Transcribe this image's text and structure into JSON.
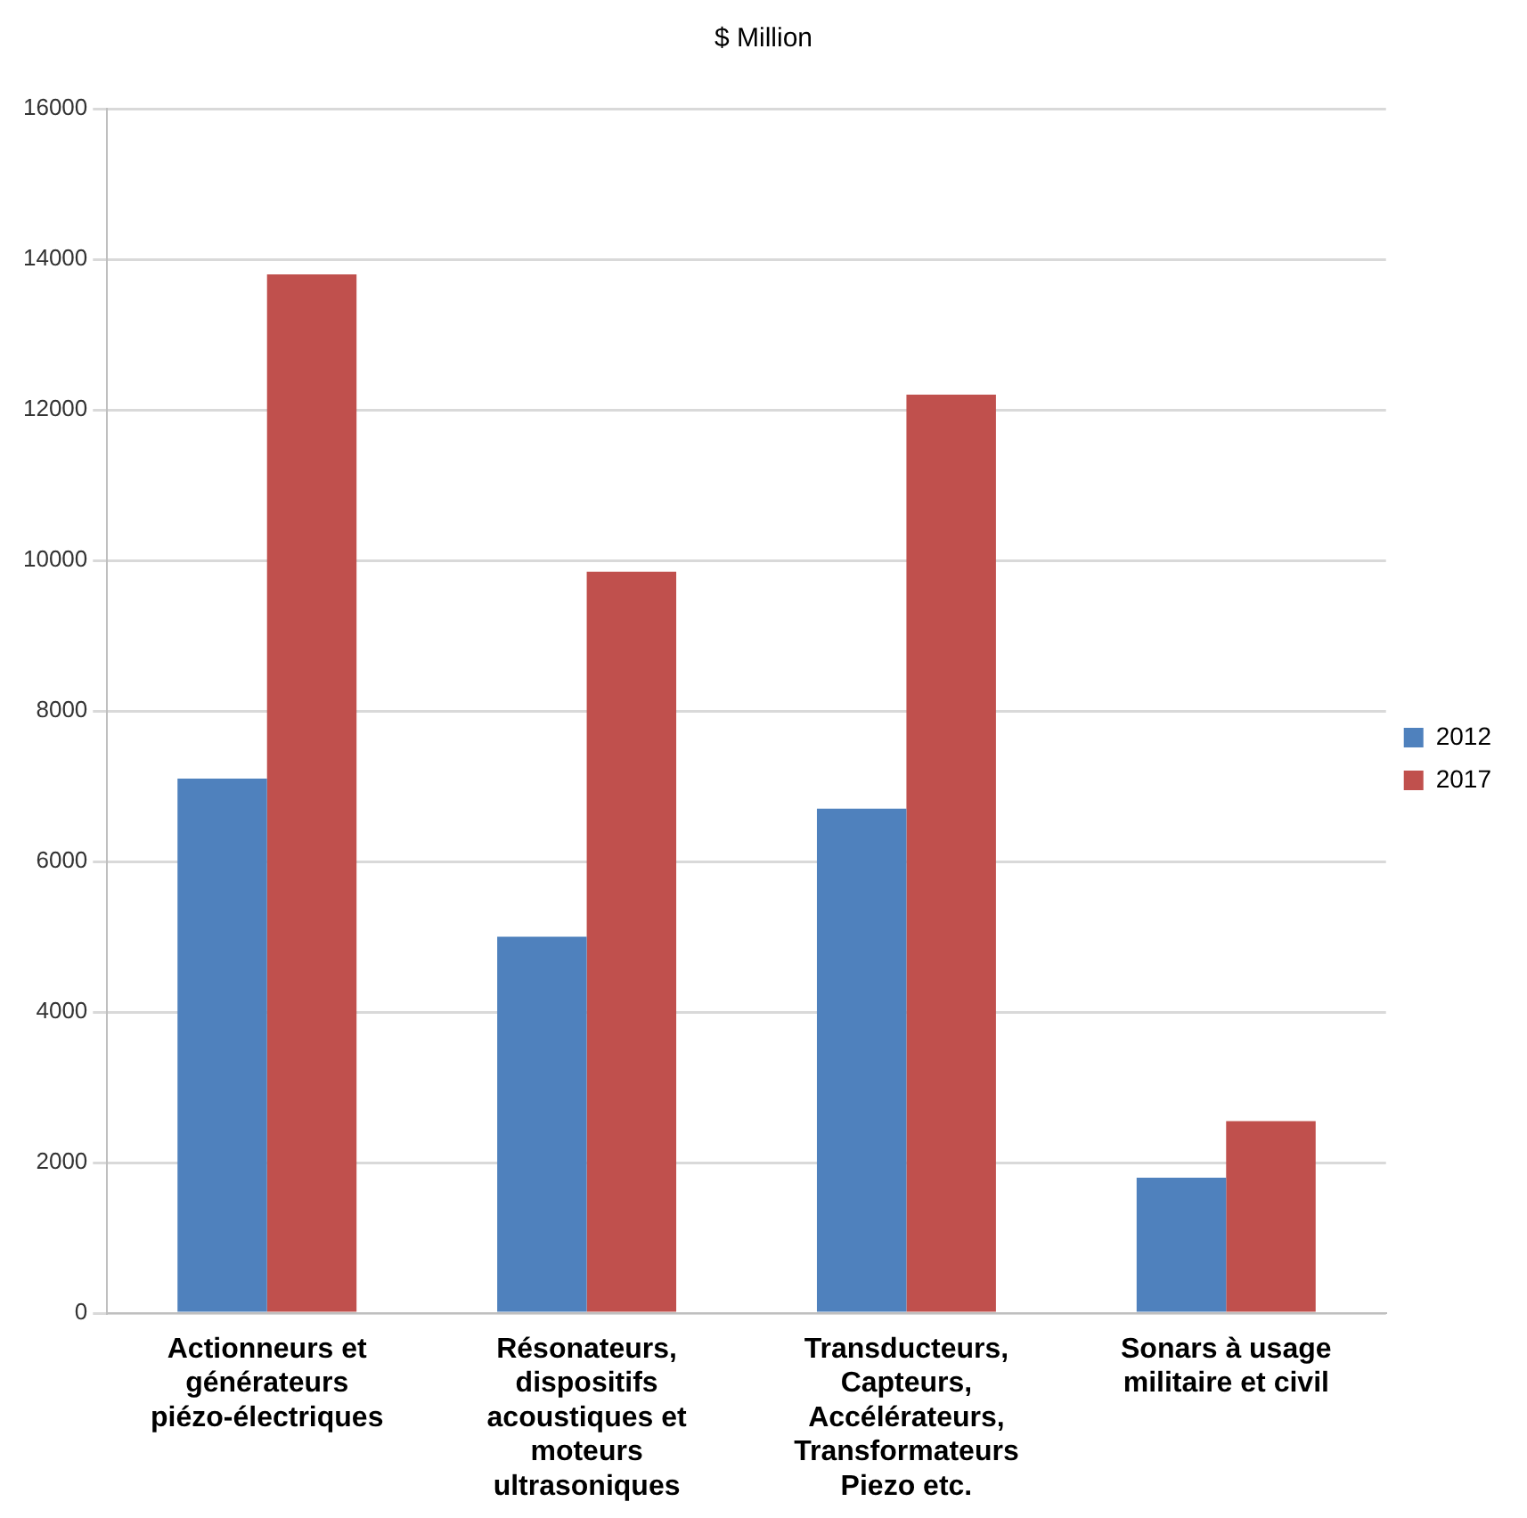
{
  "chart_data": {
    "type": "bar",
    "title": "$ Million",
    "categories": [
      "Actionneurs et générateurs piézo-électriques",
      "Résonateurs, dispositifs acoustiques et moteurs ultrasoniques",
      "Transducteurs, Capteurs, Accélérateurs, Transformateurs Piezo etc.",
      "Sonars à usage militaire et civil"
    ],
    "series": [
      {
        "name": "2012",
        "color": "#4f81bd",
        "values": [
          7100,
          5000,
          6700,
          1800
        ]
      },
      {
        "name": "2017",
        "color": "#c0504d",
        "values": [
          13800,
          9850,
          12200,
          2550
        ]
      }
    ],
    "ylim": [
      0,
      16000
    ],
    "yticks": [
      0,
      2000,
      4000,
      6000,
      8000,
      10000,
      12000,
      14000,
      16000
    ],
    "grid": "y",
    "legend": "right"
  }
}
